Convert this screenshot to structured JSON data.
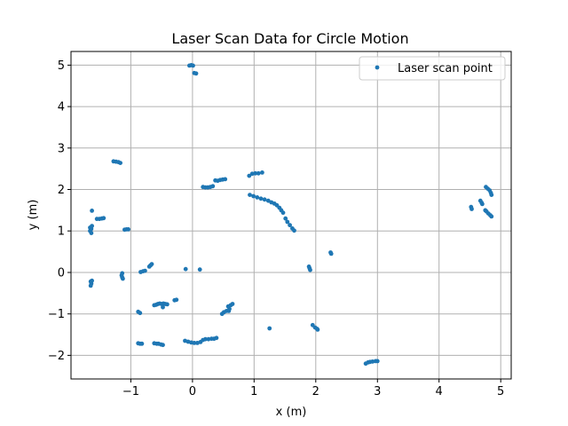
{
  "chart_data": {
    "type": "scatter",
    "title": "Laser Scan Data for Circle Motion",
    "xlabel": "x (m)",
    "ylabel": "y (m)",
    "xlim": [
      -1.97,
      5.17
    ],
    "ylim": [
      -2.57,
      5.33
    ],
    "xticks": [
      -1,
      0,
      1,
      2,
      3,
      4,
      5
    ],
    "xtick_labels": [
      "−1",
      "0",
      "1",
      "2",
      "3",
      "4",
      "5"
    ],
    "yticks": [
      -2,
      -1,
      0,
      1,
      2,
      3,
      4,
      5
    ],
    "ytick_labels": [
      "−2",
      "−1",
      "0",
      "1",
      "2",
      "3",
      "4",
      "5"
    ],
    "grid": true,
    "legend_position": "top-right",
    "series": [
      {
        "name": "Laser scan point",
        "color": "#1f77b4",
        "points": [
          [
            -0.05,
            4.99
          ],
          [
            -0.02,
            5.0
          ],
          [
            0.01,
            4.99
          ],
          [
            0.03,
            4.81
          ],
          [
            0.06,
            4.8
          ],
          [
            -1.28,
            2.68
          ],
          [
            -1.24,
            2.67
          ],
          [
            -1.2,
            2.66
          ],
          [
            -1.17,
            2.64
          ],
          [
            0.17,
            2.06
          ],
          [
            0.21,
            2.05
          ],
          [
            0.25,
            2.05
          ],
          [
            0.29,
            2.06
          ],
          [
            0.33,
            2.08
          ],
          [
            0.37,
            2.22
          ],
          [
            0.41,
            2.21
          ],
          [
            0.45,
            2.23
          ],
          [
            0.49,
            2.24
          ],
          [
            0.53,
            2.25
          ],
          [
            0.92,
            2.33
          ],
          [
            0.97,
            2.38
          ],
          [
            1.02,
            2.39
          ],
          [
            1.07,
            2.39
          ],
          [
            1.13,
            2.41
          ],
          [
            -1.63,
            1.49
          ],
          [
            -1.66,
            1.08
          ],
          [
            -1.64,
            1.05
          ],
          [
            -1.66,
            1.0
          ],
          [
            -1.64,
            0.95
          ],
          [
            -1.63,
            1.12
          ],
          [
            -1.55,
            1.29
          ],
          [
            -1.51,
            1.29
          ],
          [
            -1.47,
            1.3
          ],
          [
            -1.44,
            1.31
          ],
          [
            -1.1,
            1.03
          ],
          [
            -1.07,
            1.04
          ],
          [
            -1.04,
            1.04
          ],
          [
            0.93,
            1.87
          ],
          [
            0.99,
            1.84
          ],
          [
            1.05,
            1.81
          ],
          [
            1.11,
            1.78
          ],
          [
            1.17,
            1.76
          ],
          [
            1.23,
            1.73
          ],
          [
            1.28,
            1.69
          ],
          [
            1.33,
            1.66
          ],
          [
            1.37,
            1.62
          ],
          [
            1.41,
            1.56
          ],
          [
            1.44,
            1.5
          ],
          [
            1.47,
            1.44
          ],
          [
            1.51,
            1.3
          ],
          [
            1.54,
            1.22
          ],
          [
            1.58,
            1.14
          ],
          [
            1.62,
            1.06
          ],
          [
            1.65,
            1.01
          ],
          [
            2.24,
            0.48
          ],
          [
            2.25,
            0.45
          ],
          [
            1.89,
            0.14
          ],
          [
            1.9,
            0.1
          ],
          [
            1.91,
            0.06
          ],
          [
            4.52,
            1.58
          ],
          [
            4.53,
            1.53
          ],
          [
            4.67,
            1.73
          ],
          [
            4.69,
            1.68
          ],
          [
            4.7,
            1.65
          ],
          [
            4.75,
            1.5
          ],
          [
            4.77,
            1.47
          ],
          [
            4.8,
            1.42
          ],
          [
            4.83,
            1.38
          ],
          [
            4.85,
            1.35
          ],
          [
            4.76,
            2.06
          ],
          [
            4.79,
            2.02
          ],
          [
            4.82,
            1.98
          ],
          [
            4.84,
            1.92
          ],
          [
            4.85,
            1.87
          ],
          [
            -1.65,
            -0.22
          ],
          [
            -1.64,
            -0.27
          ],
          [
            -1.65,
            -0.32
          ],
          [
            -1.63,
            -0.2
          ],
          [
            -1.14,
            -0.02
          ],
          [
            -1.15,
            -0.07
          ],
          [
            -1.14,
            -0.12
          ],
          [
            -1.13,
            -0.15
          ],
          [
            -0.84,
            0.01
          ],
          [
            -0.8,
            0.03
          ],
          [
            -0.77,
            0.04
          ],
          [
            -0.7,
            0.14
          ],
          [
            -0.68,
            0.17
          ],
          [
            -0.66,
            0.2
          ],
          [
            -0.11,
            0.08
          ],
          [
            0.12,
            0.07
          ],
          [
            -0.88,
            -0.95
          ],
          [
            -0.85,
            -0.98
          ],
          [
            -0.62,
            -0.79
          ],
          [
            -0.59,
            -0.78
          ],
          [
            -0.56,
            -0.76
          ],
          [
            -0.53,
            -0.75
          ],
          [
            -0.5,
            -0.76
          ],
          [
            -0.47,
            -0.75
          ],
          [
            -0.44,
            -0.76
          ],
          [
            -0.41,
            -0.77
          ],
          [
            -0.48,
            -0.84
          ],
          [
            -0.29,
            -0.67
          ],
          [
            -0.26,
            -0.66
          ],
          [
            0.48,
            -1.0
          ],
          [
            0.51,
            -0.96
          ],
          [
            0.55,
            -0.93
          ],
          [
            0.59,
            -0.93
          ],
          [
            0.6,
            -0.88
          ],
          [
            0.58,
            -0.82
          ],
          [
            0.62,
            -0.79
          ],
          [
            0.65,
            -0.76
          ],
          [
            1.25,
            -1.35
          ],
          [
            1.95,
            -1.27
          ],
          [
            1.99,
            -1.33
          ],
          [
            2.02,
            -1.36
          ],
          [
            2.03,
            -1.38
          ],
          [
            -0.88,
            -1.71
          ],
          [
            -0.85,
            -1.72
          ],
          [
            -0.82,
            -1.72
          ],
          [
            -0.62,
            -1.71
          ],
          [
            -0.58,
            -1.72
          ],
          [
            -0.55,
            -1.72
          ],
          [
            -0.51,
            -1.74
          ],
          [
            -0.48,
            -1.75
          ],
          [
            -0.12,
            -1.65
          ],
          [
            -0.07,
            -1.67
          ],
          [
            -0.02,
            -1.69
          ],
          [
            0.03,
            -1.7
          ],
          [
            0.08,
            -1.7
          ],
          [
            0.13,
            -1.68
          ],
          [
            0.17,
            -1.63
          ],
          [
            0.21,
            -1.61
          ],
          [
            0.26,
            -1.61
          ],
          [
            0.31,
            -1.6
          ],
          [
            0.35,
            -1.6
          ],
          [
            0.39,
            -1.58
          ],
          [
            2.81,
            -2.2
          ],
          [
            2.85,
            -2.17
          ],
          [
            2.88,
            -2.16
          ],
          [
            2.92,
            -2.15
          ],
          [
            2.97,
            -2.14
          ],
          [
            3.0,
            -2.14
          ]
        ]
      }
    ]
  }
}
